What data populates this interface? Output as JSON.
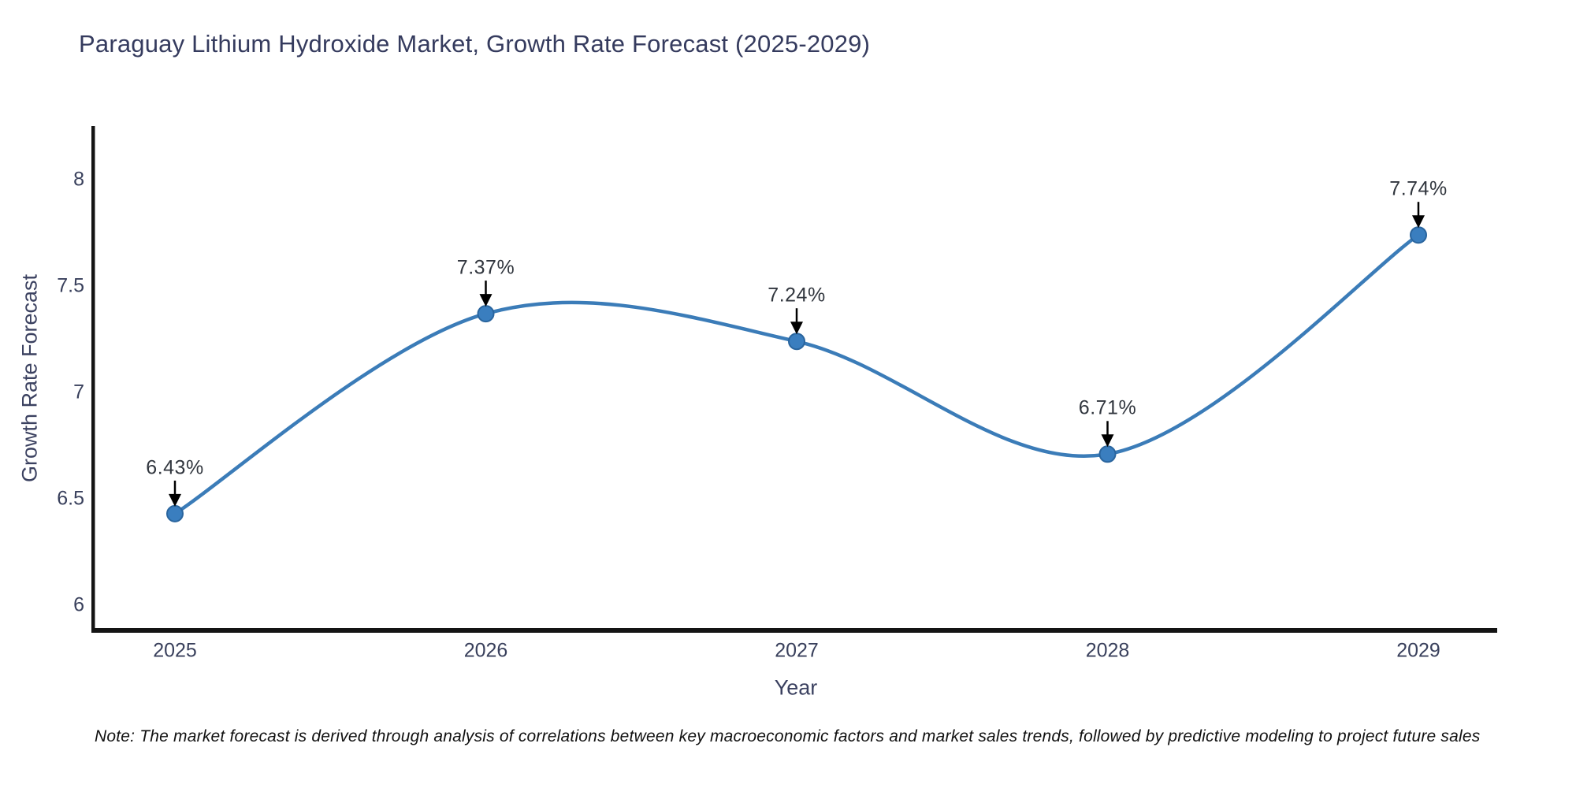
{
  "chart": {
    "note": "Note: The market forecast is derived through analysis of correlations between key macroeconomic factors and market sales trends, followed by predictive modeling to project future sales",
    "colors": {
      "line": "#3b7cb8",
      "marker_fill": "#3a7ebf",
      "marker_edge": "#2a659e",
      "axis_spine": "#141414",
      "title_text": "#353b5e",
      "tick_text": "#39405c",
      "annotation_text": "#31363e",
      "arrow": "#000000",
      "background": "#ffffff"
    }
  },
  "chart_data": {
    "type": "line",
    "title": "Paraguay Lithium Hydroxide Market, Growth Rate Forecast (2025-2029)",
    "xlabel": "Year",
    "ylabel": "Growth Rate Forecast",
    "x": [
      2025,
      2026,
      2027,
      2028,
      2029
    ],
    "values": [
      6.43,
      7.37,
      7.24,
      6.71,
      7.74
    ],
    "point_labels": [
      "6.43%",
      "7.37%",
      "7.24%",
      "6.71%",
      "7.74%"
    ],
    "yticks": [
      6,
      6.5,
      7,
      7.5,
      8
    ],
    "ylim": [
      5.88,
      8.25
    ],
    "line_shape": "spline",
    "markers": true,
    "grid": false,
    "legend_position": "none",
    "annotations": "value labels with downward arrows above each point"
  }
}
